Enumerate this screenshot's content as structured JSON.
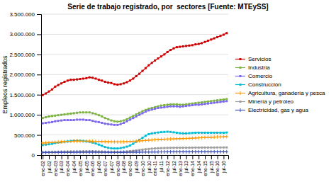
{
  "chart_data": {
    "type": "line",
    "title": "Serie de trabajo registrado, por  sectores [Fuente: MTEySS]",
    "y_label": "Empleos registrados",
    "categories": [
      "ene-02",
      null,
      "jul-02",
      null,
      "ene-03",
      null,
      "jul-03",
      null,
      "ene-04",
      null,
      "jul-04",
      null,
      "ene-05",
      null,
      "jul-05",
      null,
      "ene-06",
      null,
      "jul-06",
      null,
      "ene-07",
      null,
      "jul-07",
      null,
      "ene-08",
      null,
      "jul-08",
      null,
      "ene-09",
      null,
      "jul-09",
      null,
      "ene-10",
      null,
      "jul-10",
      null,
      "ene-11",
      null,
      "jul-11",
      null,
      "ene-12",
      null,
      "jul-12",
      null,
      "ene-13",
      null,
      "jul-13",
      null,
      "ene-14",
      null,
      "jul-14",
      null,
      "ene-15",
      null,
      "jul-15",
      null,
      "ene-16",
      null,
      "jul-16",
      null
    ],
    "ylim": [
      0,
      3500000
    ],
    "yticks": [
      0,
      {
        "value": 500000,
        "label": "500.000"
      },
      {
        "value": 1000000,
        "label": "1.000.000"
      },
      {
        "value": 1500000,
        "label": "1.500.000"
      },
      {
        "value": 2000000,
        "label": "2.000.000"
      },
      {
        "value": 2500000,
        "label": "2.500.000"
      },
      {
        "value": 3000000,
        "label": "3.000.000"
      },
      {
        "value": 3500000,
        "label": "3.500.000"
      }
    ],
    "grid": true,
    "legend": "right",
    "series": [
      {
        "name": "Servicios",
        "color": "#cc0000",
        "marker": "square",
        "values": [
          1490000,
          1530000,
          1580000,
          1630000,
          1700000,
          1740000,
          1780000,
          1820000,
          1850000,
          1870000,
          1870000,
          1880000,
          1890000,
          1900000,
          1910000,
          1930000,
          1920000,
          1900000,
          1870000,
          1850000,
          1820000,
          1800000,
          1790000,
          1760000,
          1750000,
          1760000,
          1780000,
          1810000,
          1850000,
          1900000,
          1960000,
          2020000,
          2090000,
          2160000,
          2230000,
          2290000,
          2350000,
          2400000,
          2450000,
          2500000,
          2560000,
          2610000,
          2650000,
          2680000,
          2690000,
          2700000,
          2710000,
          2720000,
          2730000,
          2750000,
          2760000,
          2780000,
          2810000,
          2840000,
          2870000,
          2900000,
          2930000,
          2960000,
          2990000,
          3030000
        ]
      },
      {
        "name": "Industria",
        "color": "#7cb342",
        "marker": "square",
        "values": [
          920000,
          940000,
          960000,
          970000,
          980000,
          990000,
          1000000,
          1010000,
          1020000,
          1030000,
          1040000,
          1050000,
          1060000,
          1060000,
          1060000,
          1060000,
          1040000,
          1020000,
          990000,
          960000,
          920000,
          890000,
          860000,
          840000,
          830000,
          840000,
          860000,
          890000,
          930000,
          970000,
          1010000,
          1050000,
          1090000,
          1120000,
          1150000,
          1170000,
          1190000,
          1210000,
          1230000,
          1240000,
          1250000,
          1260000,
          1260000,
          1260000,
          1250000,
          1250000,
          1260000,
          1270000,
          1280000,
          1290000,
          1300000,
          1310000,
          1320000,
          1330000,
          1340000,
          1350000,
          1360000,
          1370000,
          1380000,
          1390000
        ]
      },
      {
        "name": "Comercio",
        "color": "#7b68ee",
        "marker": "square",
        "values": [
          790000,
          800000,
          810000,
          820000,
          840000,
          850000,
          860000,
          870000,
          870000,
          870000,
          870000,
          880000,
          880000,
          880000,
          870000,
          870000,
          850000,
          830000,
          820000,
          800000,
          780000,
          770000,
          760000,
          750000,
          750000,
          770000,
          800000,
          840000,
          880000,
          920000,
          960000,
          1000000,
          1040000,
          1080000,
          1110000,
          1130000,
          1150000,
          1170000,
          1180000,
          1190000,
          1200000,
          1210000,
          1210000,
          1210000,
          1200000,
          1210000,
          1220000,
          1230000,
          1240000,
          1250000,
          1250000,
          1260000,
          1270000,
          1280000,
          1290000,
          1300000,
          1310000,
          1320000,
          1330000,
          1340000
        ]
      },
      {
        "name": "Construcción",
        "color": "#00bcd4",
        "marker": "square",
        "values": [
          250000,
          260000,
          270000,
          280000,
          300000,
          310000,
          320000,
          330000,
          340000,
          350000,
          360000,
          360000,
          360000,
          350000,
          340000,
          330000,
          310000,
          290000,
          260000,
          230000,
          200000,
          180000,
          170000,
          165000,
          165000,
          175000,
          190000,
          210000,
          240000,
          280000,
          330000,
          380000,
          430000,
          480000,
          520000,
          540000,
          550000,
          560000,
          570000,
          575000,
          580000,
          575000,
          565000,
          555000,
          545000,
          540000,
          540000,
          545000,
          550000,
          555000,
          555000,
          555000,
          555000,
          555000,
          555000,
          555000,
          555000,
          555000,
          555000,
          560000
        ]
      },
      {
        "name": "Agricultura, ganadería y pesca",
        "color": "#ff9800",
        "marker": "plus",
        "values": [
          300000,
          305000,
          310000,
          315000,
          320000,
          325000,
          330000,
          335000,
          340000,
          342000,
          344000,
          345000,
          346000,
          347000,
          347000,
          347000,
          345000,
          342000,
          340000,
          337000,
          334000,
          332000,
          330000,
          328000,
          327000,
          328000,
          330000,
          334000,
          338000,
          342000,
          347000,
          352000,
          358000,
          364000,
          370000,
          375000,
          380000,
          385000,
          390000,
          393000,
          397000,
          400000,
          403000,
          406000,
          408000,
          410000,
          413000,
          416000,
          420000,
          424000,
          428000,
          432000,
          436000,
          440000,
          443000,
          446000,
          449000,
          452000,
          455000,
          460000
        ]
      },
      {
        "name": "Minería y petróleo",
        "color": "#9e9e9e",
        "marker": "square",
        "values": [
          70000,
          72000,
          74000,
          76000,
          78000,
          80000,
          82000,
          84000,
          85000,
          86000,
          87000,
          88000,
          89000,
          90000,
          91000,
          92000,
          93000,
          90000,
          87000,
          84000,
          81000,
          79000,
          77000,
          76000,
          76000,
          78000,
          82000,
          88000,
          96000,
          105000,
          115000,
          125000,
          135000,
          145000,
          153000,
          160000,
          165000,
          170000,
          173000,
          176000,
          178000,
          180000,
          181000,
          182000,
          182000,
          183000,
          183000,
          184000,
          185000,
          186000,
          186000,
          187000,
          187000,
          188000,
          188000,
          188000,
          189000,
          189000,
          189000,
          190000
        ]
      },
      {
        "name": "Electricidad, gas y agua",
        "color": "#3f51b5",
        "marker": "plus",
        "values": [
          65000,
          65500,
          66000,
          66500,
          67000,
          67500,
          68000,
          68500,
          69000,
          69500,
          70000,
          70500,
          71000,
          71500,
          72000,
          72500,
          72500,
          72000,
          71500,
          71000,
          70500,
          70000,
          69500,
          69200,
          69100,
          69200,
          69500,
          70000,
          70500,
          71500,
          72500,
          73500,
          74500,
          75500,
          76500,
          77500,
          78000,
          78500,
          79000,
          79500,
          80000,
          80500,
          80800,
          81000,
          81200,
          81400,
          81600,
          81700,
          81800,
          81900,
          82000,
          82100,
          82200,
          82300,
          82400,
          82500,
          82600,
          82700,
          82800,
          83000
        ]
      }
    ]
  }
}
